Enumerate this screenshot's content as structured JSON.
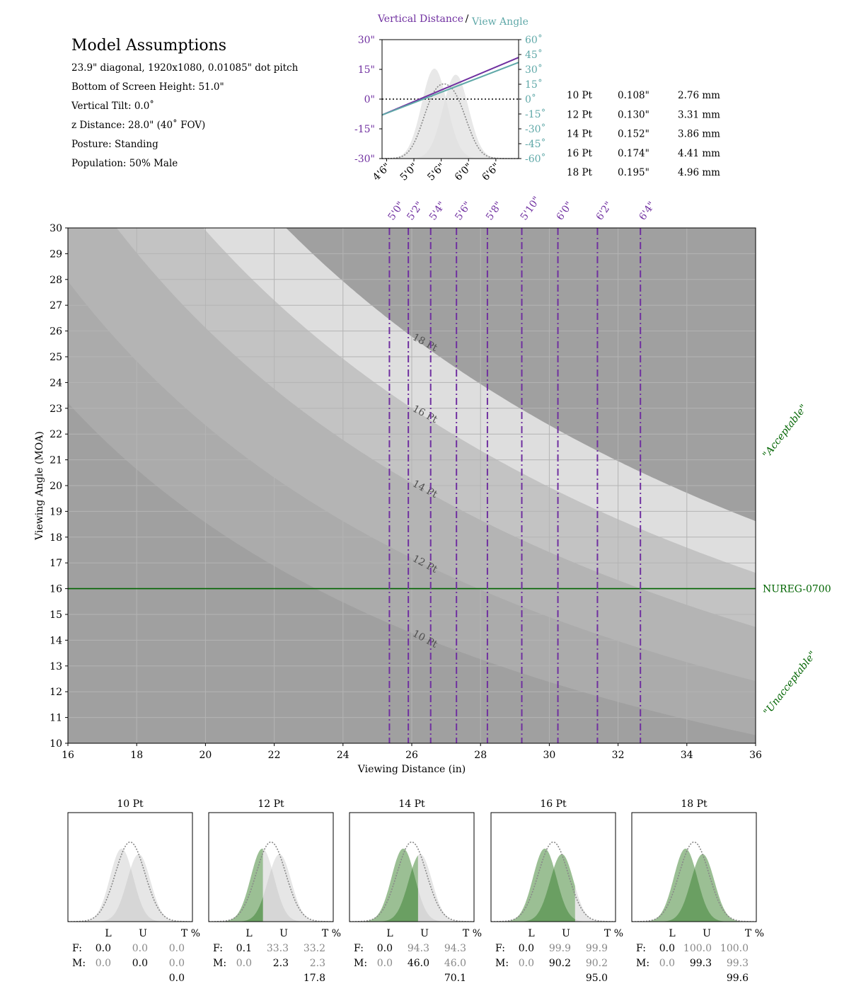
{
  "assumptions": {
    "title": "Model Assumptions",
    "lines": [
      "23.9\" diagonal, 1920x1080, 0.01085\" dot pitch",
      "Bottom of Screen Height: 51.0\"",
      "Vertical Tilt: 0.0˚",
      "z Distance: 28.0\" (40˚ FOV)",
      "Posture: Standing",
      "Population: 50% Male"
    ]
  },
  "font_table": [
    {
      "pt": "10 Pt",
      "inch": "0.108\"",
      "mm": "2.76 mm"
    },
    {
      "pt": "12 Pt",
      "inch": "0.130\"",
      "mm": "3.31 mm"
    },
    {
      "pt": "14 Pt",
      "inch": "0.152\"",
      "mm": "3.86 mm"
    },
    {
      "pt": "16 Pt",
      "inch": "0.174\"",
      "mm": "4.41 mm"
    },
    {
      "pt": "18 Pt",
      "inch": "0.195\"",
      "mm": "4.96 mm"
    }
  ],
  "colors": {
    "purple": "#7030a0",
    "teal": "#5fa8a8",
    "green": "#006400",
    "band_light": "#dedede",
    "band_base": "#a0a0a0",
    "grid": "#b4b4b4",
    "gauss_light": "#e6e6e6",
    "gauss_fill": "#9bbf94",
    "gauss_overlap": "#6a9f62"
  },
  "chart_data": [
    {
      "type": "line",
      "title_left": "Vertical Distance",
      "title_sep": "/",
      "title_right": "View Angle",
      "x_ticks": [
        "4'6\"",
        "5'0\"",
        "5'6\"",
        "6'0\"",
        "6'6\""
      ],
      "x_tick_values": [
        54,
        60,
        66,
        72,
        78
      ],
      "xlim": [
        53,
        83
      ],
      "y_left_ticks": [
        "30\"",
        "15\"",
        "0\"",
        "-15\"",
        "-30\""
      ],
      "y_left_values": [
        30,
        15,
        0,
        -15,
        -30
      ],
      "y_right_ticks": [
        "60˚",
        "45˚",
        "30˚",
        "15˚",
        "0˚",
        "-15˚",
        "-30˚",
        "-45˚",
        "-60˚"
      ],
      "y_right_values": [
        60,
        45,
        30,
        15,
        0,
        -15,
        -30,
        -45,
        -60
      ],
      "series": [
        {
          "axis": "left",
          "x": [
            53,
            83
          ],
          "y": [
            -8,
            21
          ]
        },
        {
          "axis": "right",
          "x": [
            53,
            83
          ],
          "y": [
            -16,
            37
          ]
        }
      ],
      "reference_line": 0
    },
    {
      "type": "area",
      "xlabel": "Viewing Distance (in)",
      "ylabel": "Viewing Angle (MOA)",
      "xlim": [
        16,
        36
      ],
      "ylim": [
        10,
        30
      ],
      "x_ticks": [
        16,
        18,
        20,
        22,
        24,
        26,
        28,
        30,
        32,
        34,
        36
      ],
      "y_ticks": [
        10,
        11,
        12,
        13,
        14,
        15,
        16,
        17,
        18,
        19,
        20,
        21,
        22,
        23,
        24,
        25,
        26,
        27,
        28,
        29,
        30
      ],
      "font_sizes": [
        {
          "label": "10 Pt",
          "height_in": 0.108,
          "color": "#a2a2a2"
        },
        {
          "label": "12 Pt",
          "height_in": 0.13,
          "color": "#ababab"
        },
        {
          "label": "14 Pt",
          "height_in": 0.152,
          "color": "#b4b4b4"
        },
        {
          "label": "16 Pt",
          "height_in": 0.174,
          "color": "#c3c3c3"
        },
        {
          "label": "18 Pt",
          "height_in": 0.195,
          "color": "#dedede"
        }
      ],
      "font_label_x": 26.0,
      "heights": [
        {
          "label": "5'0\"",
          "x": 25.35
        },
        {
          "label": "5'2\"",
          "x": 25.9
        },
        {
          "label": "5'4\"",
          "x": 26.55
        },
        {
          "label": "5'6\"",
          "x": 27.3
        },
        {
          "label": "5'8\"",
          "x": 28.2
        },
        {
          "label": "5'10\"",
          "x": 29.2
        },
        {
          "label": "6'0\"",
          "x": 30.25
        },
        {
          "label": "6'2\"",
          "x": 31.4
        },
        {
          "label": "6'4\"",
          "x": 32.65
        }
      ],
      "threshold": {
        "value": 16,
        "label": "NUREG-0700"
      },
      "acceptable_label": "\"Acceptable\"",
      "unacceptable_label": "\"Unacceptable\""
    },
    {
      "type": "area",
      "panels": [
        {
          "title": "10 Pt",
          "cut": null,
          "fem": [
            "0.0",
            "0.0",
            "0.0"
          ],
          "male": [
            "0.0",
            "0.0",
            "0.0"
          ],
          "total": "0.0"
        },
        {
          "title": "12 Pt",
          "cut": -0.52,
          "fem": [
            "0.1",
            "33.3",
            "33.2"
          ],
          "male": [
            "0.0",
            "2.3",
            "2.3"
          ],
          "total": "17.8"
        },
        {
          "title": "14 Pt",
          "cut": 0.4,
          "fem": [
            "0.0",
            "94.3",
            "94.3"
          ],
          "male": [
            "0.0",
            "46.0",
            "46.0"
          ],
          "total": "70.1"
        },
        {
          "title": "16 Pt",
          "cut": 1.4,
          "fem": [
            "0.0",
            "99.9",
            "99.9"
          ],
          "male": [
            "0.0",
            "90.2",
            "90.2"
          ],
          "total": "95.0"
        },
        {
          "title": "18 Pt",
          "cut": 3.5,
          "fem": [
            "0.0",
            "100.0",
            "100.0"
          ],
          "male": [
            "0.0",
            "99.3",
            "99.3"
          ],
          "total": "99.6"
        }
      ],
      "col_headers": [
        "L",
        "U",
        "T %"
      ],
      "row_labels": [
        "F:",
        "M:"
      ]
    }
  ]
}
